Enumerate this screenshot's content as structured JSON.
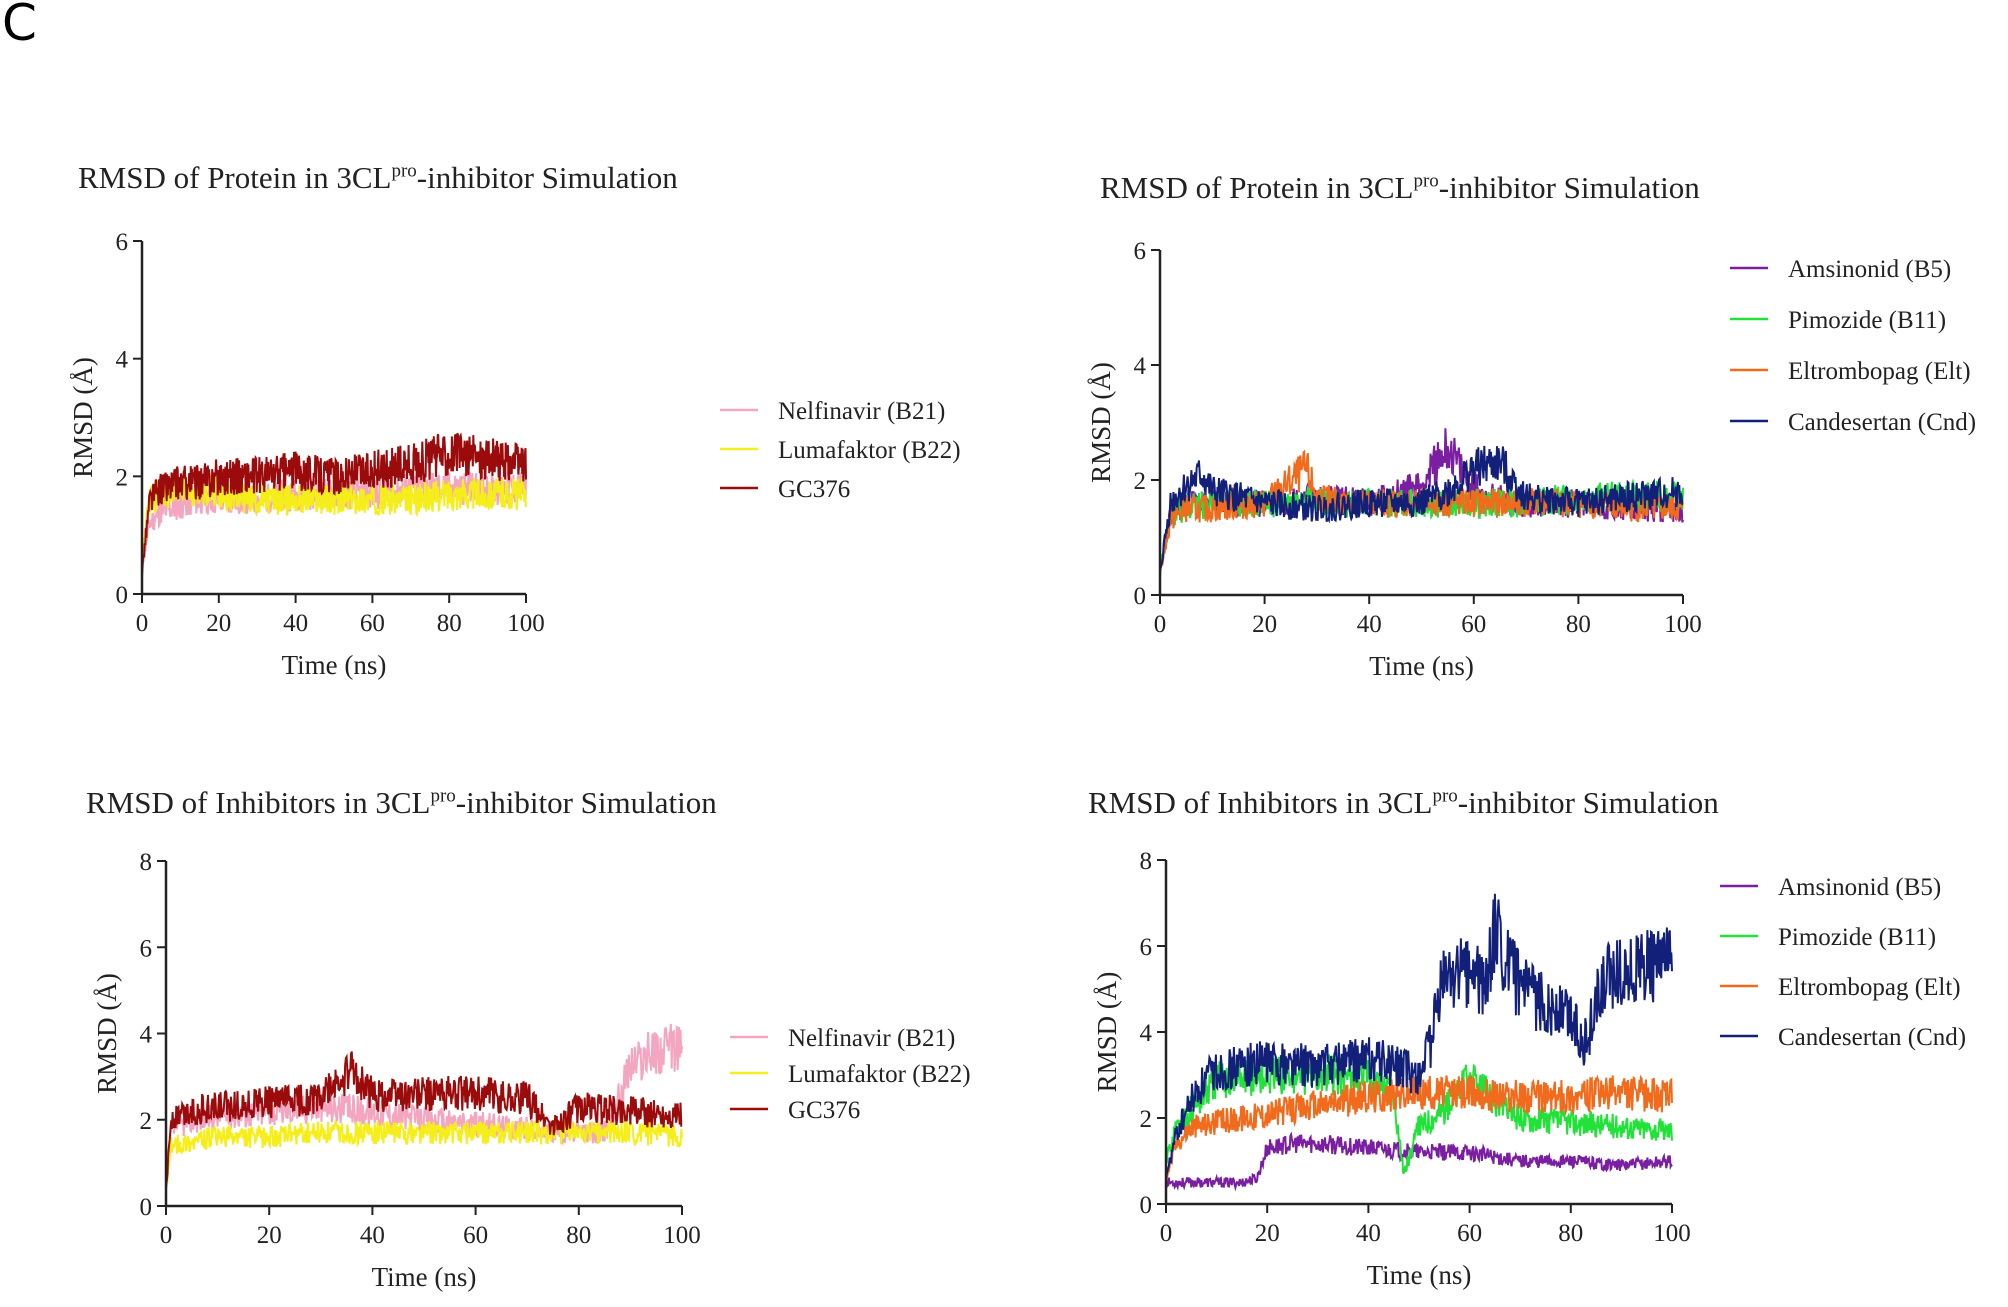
{
  "panel_label": "C",
  "chart_data": [
    {
      "id": "c1",
      "type": "line",
      "title": {
        "prefix": "RMSD of Protein in 3CL",
        "sup": "pro",
        "suffix": "-inhibitor Simulation"
      },
      "xlabel": "Time (ns)",
      "ylabel": "RMSD (Å)",
      "xlim": [
        0,
        100
      ],
      "ylim": [
        0,
        6
      ],
      "xticks": [
        0,
        20,
        40,
        60,
        80,
        100
      ],
      "yticks": [
        0,
        2,
        4,
        6
      ],
      "series": [
        {
          "name": "Nelfinavir (B21)",
          "color": "#F4A6C0",
          "x": [
            0,
            2,
            5,
            10,
            15,
            20,
            30,
            40,
            50,
            60,
            70,
            80,
            90,
            100
          ],
          "y": [
            0.5,
            1.2,
            1.4,
            1.5,
            1.6,
            1.6,
            1.6,
            1.7,
            1.7,
            1.7,
            1.8,
            1.8,
            1.8,
            1.8
          ]
        },
        {
          "name": "Lumafaktor (B22)",
          "color": "#F5EE1A",
          "x": [
            0,
            2,
            5,
            10,
            15,
            20,
            30,
            40,
            50,
            60,
            70,
            80,
            90,
            100
          ],
          "y": [
            0.6,
            1.6,
            1.7,
            1.7,
            1.8,
            1.7,
            1.6,
            1.6,
            1.6,
            1.6,
            1.6,
            1.7,
            1.7,
            1.7
          ]
        },
        {
          "name": "GC376",
          "color": "#9B0B0B",
          "x": [
            0,
            2,
            5,
            10,
            15,
            20,
            30,
            40,
            50,
            60,
            70,
            80,
            90,
            100
          ],
          "y": [
            0.4,
            1.6,
            1.8,
            1.9,
            1.9,
            2.0,
            2.0,
            2.1,
            2.0,
            2.1,
            2.2,
            2.4,
            2.3,
            2.2
          ]
        }
      ]
    },
    {
      "id": "c2",
      "type": "line",
      "title": {
        "prefix": "RMSD of Protein in 3CL",
        "sup": "pro",
        "suffix": "-inhibitor Simulation"
      },
      "xlabel": "Time (ns)",
      "ylabel": "RMSD (Å)",
      "xlim": [
        0,
        100
      ],
      "ylim": [
        0,
        6
      ],
      "xticks": [
        0,
        20,
        40,
        60,
        80,
        100
      ],
      "yticks": [
        0,
        2,
        4,
        6
      ],
      "series": [
        {
          "name": "Amsinonid (B5)",
          "color": "#7A1FA2",
          "x": [
            0,
            2,
            5,
            10,
            20,
            30,
            40,
            50,
            55,
            58,
            62,
            70,
            80,
            90,
            100
          ],
          "y": [
            0.4,
            1.4,
            1.6,
            1.6,
            1.6,
            1.7,
            1.6,
            1.9,
            2.6,
            2.1,
            1.7,
            1.6,
            1.6,
            1.5,
            1.5
          ]
        },
        {
          "name": "Pimozide (B11)",
          "color": "#22E23A",
          "x": [
            0,
            2,
            5,
            10,
            20,
            30,
            40,
            50,
            60,
            70,
            80,
            90,
            100
          ],
          "y": [
            0.4,
            1.4,
            1.5,
            1.6,
            1.6,
            1.6,
            1.6,
            1.6,
            1.6,
            1.6,
            1.7,
            1.7,
            1.7
          ]
        },
        {
          "name": "Eltrombopag (Elt)",
          "color": "#F26B1D",
          "x": [
            0,
            2,
            5,
            10,
            20,
            28,
            30,
            35,
            40,
            50,
            60,
            70,
            80,
            90,
            100
          ],
          "y": [
            0.4,
            1.3,
            1.5,
            1.5,
            1.6,
            2.2,
            1.7,
            1.6,
            1.6,
            1.6,
            1.6,
            1.6,
            1.6,
            1.5,
            1.5
          ]
        },
        {
          "name": "Candesertan (Cnd)",
          "color": "#12207A",
          "x": [
            0,
            2,
            5,
            8,
            10,
            20,
            30,
            40,
            50,
            55,
            60,
            65,
            70,
            80,
            90,
            100
          ],
          "y": [
            0.4,
            1.6,
            1.9,
            2.1,
            1.8,
            1.6,
            1.5,
            1.6,
            1.6,
            1.8,
            2.2,
            2.3,
            1.7,
            1.6,
            1.7,
            1.8
          ]
        }
      ]
    },
    {
      "id": "c3",
      "type": "line",
      "title": {
        "prefix": "RMSD of Inhibitors in 3CL",
        "sup": "pro",
        "suffix": "-inhibitor Simulation"
      },
      "xlabel": "Time (ns)",
      "ylabel": "RMSD (Å)",
      "xlim": [
        0,
        100
      ],
      "ylim": [
        0,
        8
      ],
      "xticks": [
        0,
        20,
        40,
        60,
        80,
        100
      ],
      "yticks": [
        0,
        2,
        4,
        6,
        8
      ],
      "series": [
        {
          "name": "Nelfinavir (B21)",
          "color": "#F4A6C0",
          "x": [
            0,
            1,
            5,
            10,
            20,
            30,
            40,
            50,
            60,
            70,
            80,
            85,
            88,
            90,
            95,
            100
          ],
          "y": [
            0.4,
            1.8,
            2.0,
            2.1,
            2.2,
            2.3,
            2.2,
            2.0,
            1.9,
            1.8,
            1.7,
            1.7,
            2.6,
            3.3,
            3.6,
            3.7
          ]
        },
        {
          "name": "Lumafaktor (B22)",
          "color": "#F5EE1A",
          "x": [
            0,
            1,
            5,
            10,
            20,
            30,
            40,
            50,
            60,
            70,
            80,
            90,
            100
          ],
          "y": [
            0.4,
            1.4,
            1.5,
            1.6,
            1.6,
            1.7,
            1.7,
            1.7,
            1.7,
            1.7,
            1.7,
            1.7,
            1.6
          ]
        },
        {
          "name": "GC376",
          "color": "#9B0B0B",
          "x": [
            0,
            1,
            5,
            10,
            20,
            30,
            36,
            40,
            50,
            60,
            70,
            75,
            80,
            90,
            100
          ],
          "y": [
            0.4,
            2.0,
            2.2,
            2.3,
            2.4,
            2.5,
            3.1,
            2.6,
            2.6,
            2.6,
            2.5,
            1.8,
            2.3,
            2.2,
            2.1
          ]
        }
      ]
    },
    {
      "id": "c4",
      "type": "line",
      "title": {
        "prefix": "RMSD of Inhibitors in 3CL",
        "sup": "pro",
        "suffix": "-inhibitor Simulation"
      },
      "xlabel": "Time (ns)",
      "ylabel": "RMSD (Å)",
      "xlim": [
        0,
        100
      ],
      "ylim": [
        0,
        8
      ],
      "xticks": [
        0,
        20,
        40,
        60,
        80,
        100
      ],
      "yticks": [
        0,
        2,
        4,
        6,
        8
      ],
      "series": [
        {
          "name": "Amsinonid (B5)",
          "color": "#7A1FA2",
          "x": [
            0,
            2,
            5,
            10,
            15,
            18,
            20,
            25,
            30,
            40,
            50,
            60,
            70,
            80,
            90,
            100
          ],
          "y": [
            0.5,
            0.5,
            0.5,
            0.5,
            0.5,
            0.6,
            1.3,
            1.4,
            1.4,
            1.3,
            1.2,
            1.2,
            1.0,
            1.0,
            0.9,
            1.0
          ]
        },
        {
          "name": "Pimozide (B11)",
          "color": "#22E23A",
          "x": [
            0,
            2,
            5,
            8,
            10,
            20,
            30,
            40,
            45,
            47,
            50,
            55,
            60,
            65,
            70,
            80,
            90,
            100
          ],
          "y": [
            1.0,
            1.8,
            2.2,
            2.6,
            2.9,
            3.0,
            3.0,
            3.0,
            2.6,
            0.7,
            1.8,
            2.2,
            2.9,
            2.4,
            2.0,
            1.9,
            1.8,
            1.7
          ]
        },
        {
          "name": "Eltrombopag (Elt)",
          "color": "#F26B1D",
          "x": [
            0,
            2,
            5,
            10,
            20,
            30,
            40,
            50,
            60,
            70,
            80,
            90,
            100
          ],
          "y": [
            0.6,
            1.4,
            1.8,
            1.9,
            2.1,
            2.3,
            2.5,
            2.6,
            2.6,
            2.5,
            2.5,
            2.6,
            2.5
          ]
        },
        {
          "name": "Candesertan (Cnd)",
          "color": "#12207A",
          "x": [
            0,
            2,
            5,
            8,
            10,
            20,
            30,
            40,
            45,
            50,
            52,
            55,
            60,
            63,
            65,
            70,
            75,
            80,
            83,
            85,
            88,
            90,
            95,
            100
          ],
          "y": [
            0.6,
            1.6,
            2.4,
            2.9,
            3.1,
            3.3,
            3.2,
            3.4,
            3.2,
            3.0,
            3.6,
            5.3,
            5.4,
            5.0,
            6.3,
            5.0,
            4.6,
            4.4,
            3.7,
            4.7,
            5.4,
            5.4,
            5.5,
            5.6
          ]
        }
      ]
    }
  ]
}
